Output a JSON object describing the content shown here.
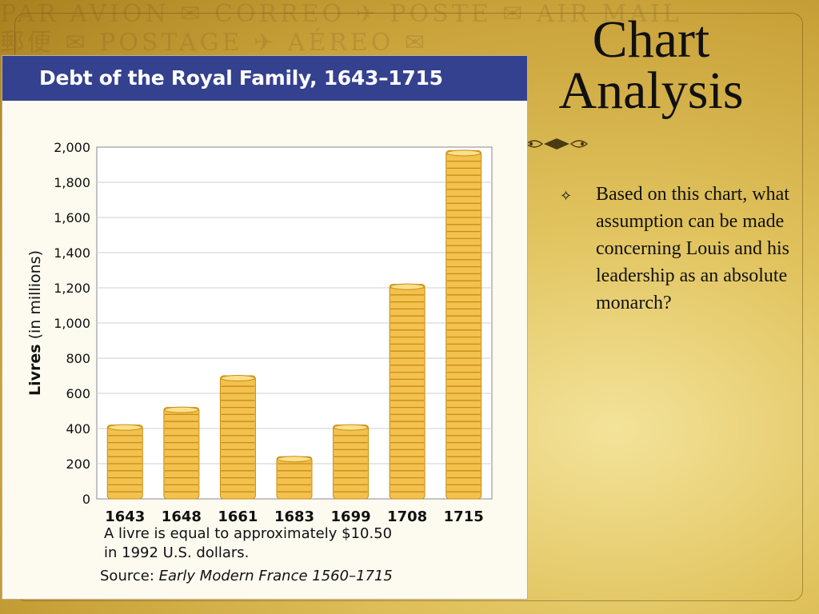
{
  "slide": {
    "title_line1": "Chart",
    "title_line2": "Analysis",
    "bullet_icon": "four-point-star-icon",
    "bullet_text": "Based on this chart, what assumption can be made concerning Louis and his leadership as an absolute monarch?"
  },
  "colors": {
    "header_bg": "#34418e",
    "coin_fill": "#f2c14e",
    "coin_edge": "#c98c14",
    "gridline": "#cfcfcf"
  },
  "chart_data": {
    "type": "bar",
    "title": "Debt of the Royal Family, 1643–1715",
    "ylabel_bold": "Livres",
    "ylabel_rest": "(in millions)",
    "categories": [
      "1643",
      "1648",
      "1661",
      "1683",
      "1699",
      "1708",
      "1715"
    ],
    "values": [
      420,
      520,
      700,
      240,
      420,
      1220,
      1980
    ],
    "ylim": [
      0,
      2000
    ],
    "yticks": [
      "0",
      "200",
      "400",
      "600",
      "800",
      "1,000",
      "1,200",
      "1,400",
      "1,600",
      "1,800",
      "2,000"
    ],
    "grid": true,
    "bar_style": "stacked coins",
    "note_line1": "A livre is equal to approximately $10.50",
    "note_line2": "in 1992 U.S. dollars.",
    "source_label": "Source:",
    "source_title": "Early Modern France 1560–1715"
  }
}
